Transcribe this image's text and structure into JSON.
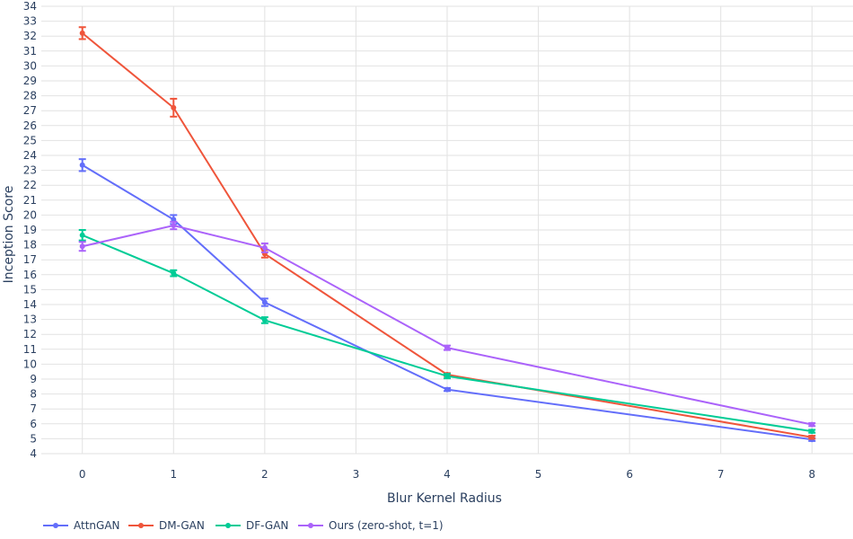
{
  "chart_data": {
    "type": "line",
    "xlabel": "Blur Kernel Radius",
    "ylabel": "Inception Score",
    "xlim": [
      -0.45,
      8.45
    ],
    "ylim": [
      4,
      34
    ],
    "x_ticks": [
      0,
      1,
      2,
      3,
      4,
      5,
      6,
      7,
      8
    ],
    "y_ticks": [
      4,
      5,
      6,
      7,
      8,
      9,
      10,
      11,
      12,
      13,
      14,
      15,
      16,
      17,
      18,
      19,
      20,
      21,
      22,
      23,
      24,
      25,
      26,
      27,
      28,
      29,
      30,
      31,
      32,
      33,
      34
    ],
    "grid": true,
    "legend_position": "bottom-left",
    "x": [
      0,
      1,
      2,
      4,
      8
    ],
    "series": [
      {
        "name": "AttnGAN",
        "color": "#636efa",
        "values": [
          23.35,
          19.7,
          14.15,
          8.3,
          4.95
        ],
        "errors": [
          0.4,
          0.3,
          0.25,
          0.1,
          0.1
        ]
      },
      {
        "name": "DM-GAN",
        "color": "#ef553b",
        "values": [
          32.2,
          27.2,
          17.4,
          9.3,
          5.1
        ],
        "errors": [
          0.4,
          0.6,
          0.25,
          0.1,
          0.1
        ]
      },
      {
        "name": "DF-GAN",
        "color": "#00cc96",
        "values": [
          18.65,
          16.1,
          12.95,
          9.2,
          5.5
        ],
        "errors": [
          0.35,
          0.2,
          0.2,
          0.15,
          0.1
        ]
      },
      {
        "name": "Ours (zero-shot, t=1)",
        "color": "#ab63fa",
        "values": [
          17.9,
          19.3,
          17.8,
          11.1,
          5.95
        ],
        "errors": [
          0.3,
          0.25,
          0.3,
          0.15,
          0.1
        ]
      }
    ]
  }
}
